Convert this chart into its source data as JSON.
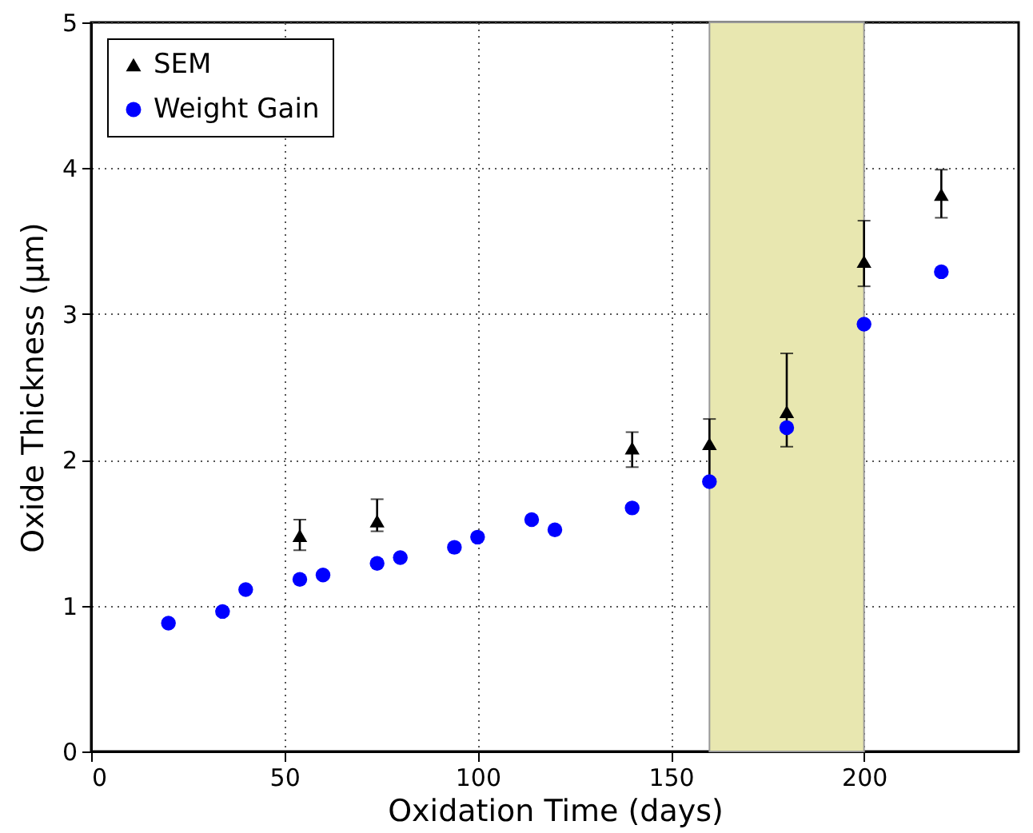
{
  "chart_data": {
    "type": "scatter",
    "xlabel": "Oxidation Time (days)",
    "ylabel": "Oxide Thickness (μm)",
    "xlim": [
      0,
      240
    ],
    "ylim": [
      0,
      5
    ],
    "xticks": [
      0,
      50,
      100,
      150,
      200
    ],
    "yticks": [
      0,
      1,
      2,
      3,
      4,
      5
    ],
    "grid": true,
    "legend": "top left",
    "bands": [
      {
        "axis": "x",
        "from": 160,
        "to": 200,
        "color": "#e8e7b0"
      }
    ],
    "series": [
      {
        "name": "SEM",
        "marker": "triangle",
        "color": "#000000",
        "x": [
          54,
          74,
          140,
          160,
          180,
          200,
          220
        ],
        "values": [
          1.48,
          1.58,
          2.08,
          2.11,
          2.33,
          3.36,
          3.82
        ],
        "errors": [
          [
            1.38,
            1.59
          ],
          [
            1.51,
            1.73
          ],
          [
            1.95,
            2.19
          ],
          [
            1.87,
            2.28
          ],
          [
            2.09,
            2.73
          ],
          [
            3.19,
            3.64
          ],
          [
            3.66,
            3.99
          ]
        ]
      },
      {
        "name": "Weight Gain",
        "marker": "circle",
        "color": "#0000ff",
        "x": [
          20,
          34,
          40,
          54,
          60,
          74,
          80,
          94,
          100,
          114,
          120,
          140,
          160,
          180,
          200,
          220
        ],
        "values": [
          0.88,
          0.96,
          1.11,
          1.18,
          1.21,
          1.29,
          1.33,
          1.4,
          1.47,
          1.59,
          1.52,
          1.67,
          1.85,
          2.22,
          2.93,
          3.29
        ]
      }
    ]
  }
}
